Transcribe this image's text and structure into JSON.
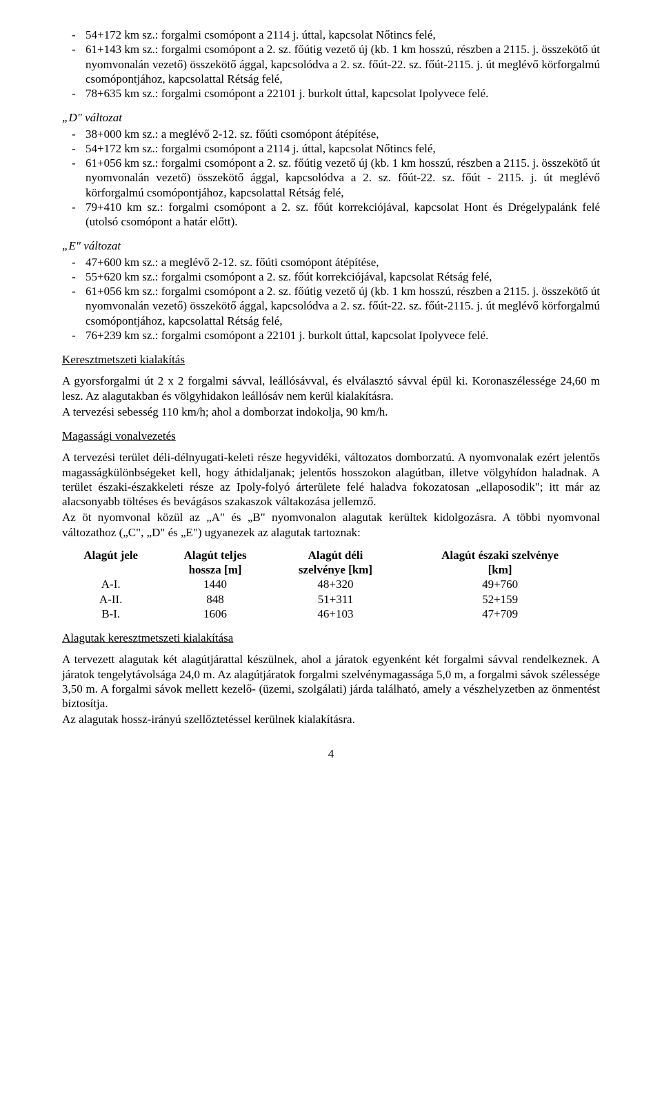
{
  "top_bullets": [
    "54+172 km sz.: forgalmi csomópont a 2114 j. úttal, kapcsolat Nőtincs felé,",
    "61+143 km sz.: forgalmi csomópont a 2. sz. főútig vezető új (kb. 1 km hosszú, részben a 2115. j. összekötő út nyomvonalán vezető) összekötő ággal, kapcsolódva a 2. sz. főút-22. sz. főút-2115. j. út meglévő körforgalmú csomópontjához, kapcsolattal Rétság felé,",
    "78+635 km sz.: forgalmi csomópont a 22101 j. burkolt úttal, kapcsolat Ipolyvece felé."
  ],
  "d_label": "„D\" változat",
  "d_bullets": [
    "38+000 km sz.: a meglévő 2-12. sz. főúti csomópont átépítése,",
    "54+172 km sz.: forgalmi csomópont a 2114 j. úttal, kapcsolat Nőtincs felé,",
    "61+056 km sz.: forgalmi csomópont a 2. sz. főútig vezető új (kb. 1 km hosszú, részben a 2115. j. összekötő út nyomvonalán vezető) összekötő ággal, kapcsolódva a 2. sz. főút-22. sz. főút - 2115. j. út meglévő körforgalmú csomópontjához, kapcsolattal Rétság felé,",
    "79+410 km sz.: forgalmi csomópont a 2. sz. főút korrekciójával, kapcsolat Hont és Drégelypalánk felé (utolsó csomópont a határ előtt)."
  ],
  "e_label": "„E\" változat",
  "e_bullets": [
    "47+600 km sz.: a meglévő 2-12. sz. főúti csomópont átépítése,",
    "55+620 km sz.: forgalmi csomópont a 2. sz. főút korrekciójával, kapcsolat Rétság felé,",
    "61+056 km sz.: forgalmi csomópont a 2. sz. főútig vezető új (kb. 1 km hosszú, részben a 2115. j. összekötő út nyomvonalán vezető) összekötő ággal, kapcsolódva a 2. sz. főút-22. sz. főút-2115. j. út meglévő körforgalmú csomópontjához, kapcsolattal Rétság felé,",
    "76+239 km sz.: forgalmi csomópont a 22101 j. burkolt úttal, kapcsolat Ipolyvece felé."
  ],
  "cross_title": "Keresztmetszeti kialakítás",
  "cross_para1": "A gyorsforgalmi út 2 x 2 forgalmi sávval, leállósávval, és elválasztó sávval épül ki. Koronaszélessége 24,60 m lesz. Az alagutakban és völgyhidakon leállósáv nem kerül kialakításra.",
  "cross_para2": "A tervezési sebesség 110 km/h; ahol a domborzat indokolja, 90 km/h.",
  "height_title": "Magassági vonalvezetés",
  "height_para1": "A tervezési terület déli-délnyugati-keleti része hegyvidéki, változatos domborzatú. A nyomvonalak ezért jelentős magasságkülönbségeket kell, hogy áthidaljanak; jelentős hosszokon alagútban, illetve völgyhídon haladnak. A terület északi-északkeleti része az Ipoly-folyó árterülete felé haladva fokozatosan „ellaposodik\"; itt már az alacsonyabb töltéses és bevágásos szakaszok váltakozása jellemző.",
  "height_para2": "Az öt nyomvonal közül az „A\" és „B\" nyomvonalon alagutak kerültek kidolgozásra. A többi nyomvonal változathoz („C\", „D\" és „E\") ugyanezek az alagutak tartoznak:",
  "tunnel_table": {
    "headers": [
      "Alagút jele",
      "Alagút teljes hossza [m]",
      "Alagút déli szelvénye [km]",
      "Alagút északi szelvénye [km]"
    ],
    "rows": [
      [
        "A-I.",
        "1440",
        "48+320",
        "49+760"
      ],
      [
        "A-II.",
        "848",
        "51+311",
        "52+159"
      ],
      [
        "B-I.",
        "1606",
        "46+103",
        "47+709"
      ]
    ]
  },
  "tunnel_cross_title": "Alagutak keresztmetszeti kialakítása",
  "tunnel_cross_para1": "A tervezett alagutak két alagútjárattal készülnek, ahol a járatok egyenként két forgalmi sávval rendelkeznek. A járatok tengelytávolsága 24,0 m. Az alagútjáratok forgalmi szelvénymagassága 5,0 m, a forgalmi sávok szélessége 3,50 m. A forgalmi sávok mellett kezelő- (üzemi, szolgálati) járda található, amely a vészhelyzetben az önmentést biztosítja.",
  "tunnel_cross_para2": "Az alagutak hossz-irányú szellőztetéssel kerülnek kialakításra.",
  "page_number": "4"
}
